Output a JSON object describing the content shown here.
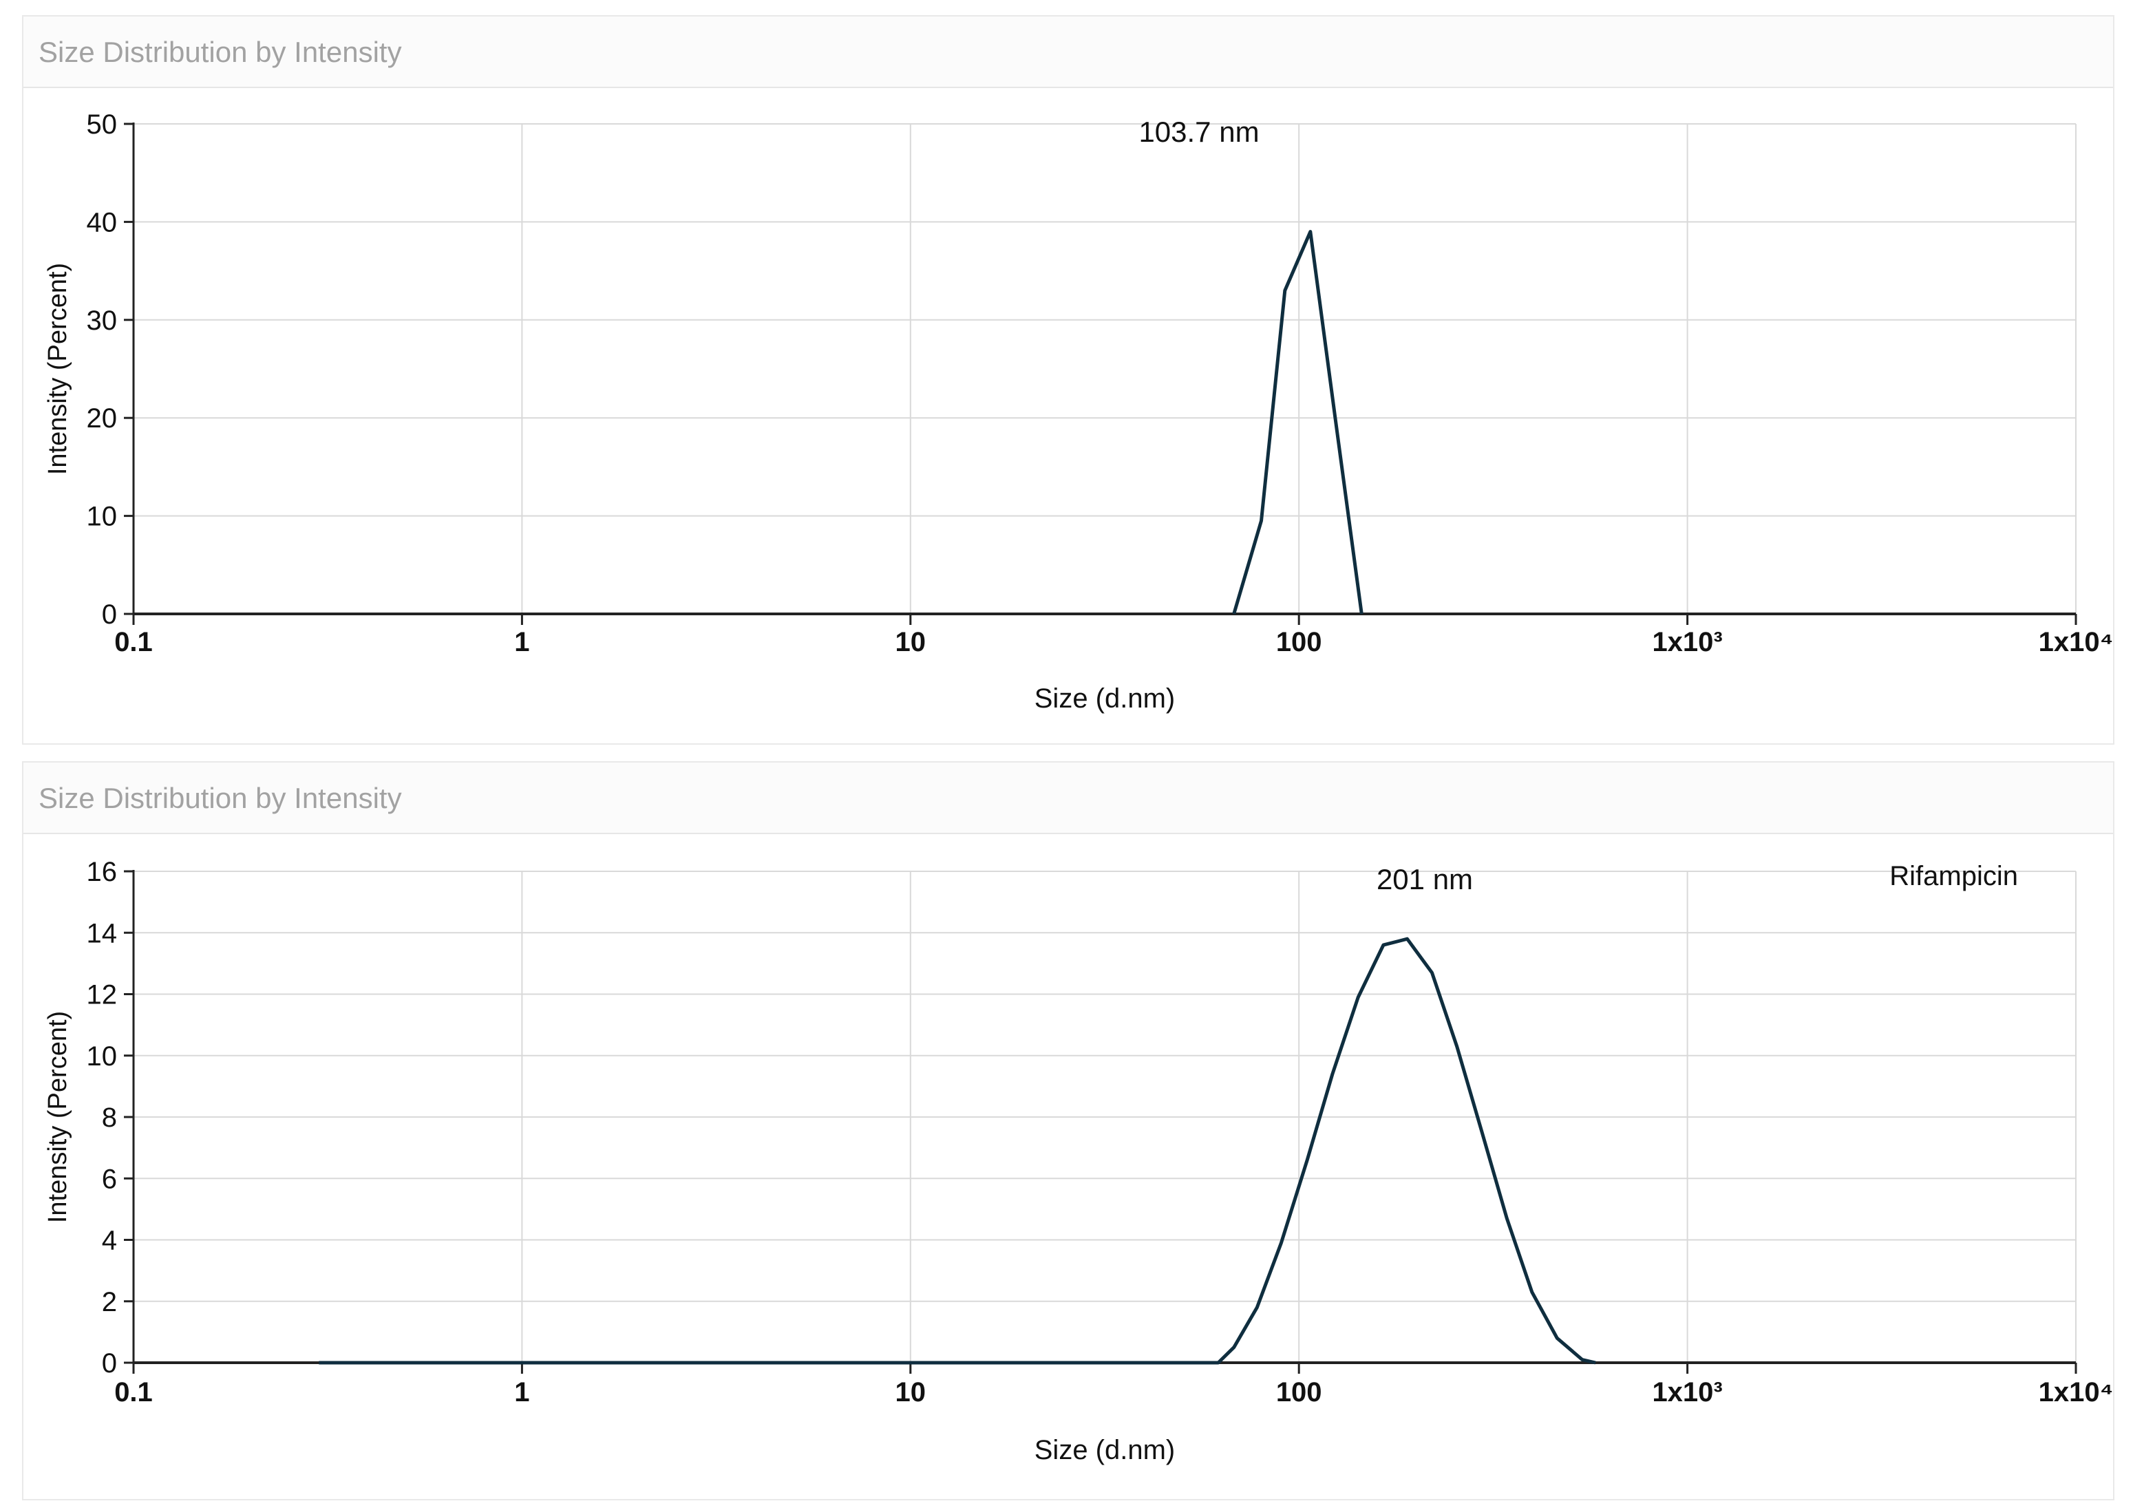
{
  "charts": [
    {
      "header_title": "Size Distribution by Intensity",
      "annotation": "103.7 nm",
      "legend_label": ""
    },
    {
      "header_title": "Size Distribution by Intensity",
      "annotation": "201 nm",
      "legend_label": "Rifampicin"
    }
  ],
  "colors": {
    "line": "#0f2e3f",
    "grid": "#d9d9d9",
    "axis": "#222222",
    "header_text": "#a2a2a2"
  },
  "chart_data": [
    {
      "type": "line",
      "title": "Size Distribution by Intensity",
      "xlabel": "Size (d.nm)",
      "ylabel": "Intensity (Percent)",
      "xscale": "log",
      "xlim": [
        0.1,
        10000
      ],
      "ylim": [
        0,
        50
      ],
      "x_ticks": [
        "0.1",
        "1",
        "10",
        "100",
        "1x10³",
        "1x10⁴"
      ],
      "y_ticks": [
        "0",
        "10",
        "20",
        "30",
        "40",
        "50"
      ],
      "grid": true,
      "annotations": [
        "103.7 nm"
      ],
      "series": [
        {
          "x": [
            68,
            80,
            92,
            107,
            124,
            145
          ],
          "y": [
            0,
            9.5,
            33,
            39,
            20,
            0
          ]
        }
      ]
    },
    {
      "type": "line",
      "title": "Size Distribution by Intensity",
      "xlabel": "Size (d.nm)",
      "ylabel": "Intensity (Percent)",
      "xscale": "log",
      "xlim": [
        0.1,
        10000
      ],
      "ylim": [
        0,
        16
      ],
      "x_ticks": [
        "0.1",
        "1",
        "10",
        "100",
        "1x10³",
        "1x10⁴"
      ],
      "y_ticks": [
        "0",
        "2",
        "4",
        "6",
        "8",
        "10",
        "12",
        "14",
        "16"
      ],
      "grid": true,
      "annotations": [
        "201 nm"
      ],
      "legend": [
        "Rifampicin"
      ],
      "legend_position": "top-right",
      "series": [
        {
          "name": "Rifampicin",
          "x": [
            0.3,
            62,
            68,
            78,
            90,
            105,
            122,
            142,
            165,
            190,
            220,
            255,
            296,
            343,
            398,
            462,
            536,
            580
          ],
          "y": [
            0,
            0,
            0.5,
            1.8,
            3.9,
            6.6,
            9.4,
            11.9,
            13.6,
            13.8,
            12.7,
            10.3,
            7.5,
            4.7,
            2.3,
            0.8,
            0.1,
            0
          ]
        }
      ]
    }
  ]
}
